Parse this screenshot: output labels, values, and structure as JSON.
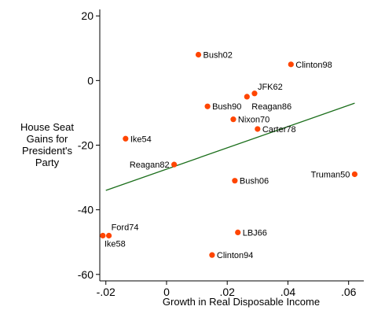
{
  "chart_data": {
    "type": "scatter",
    "title": "",
    "xlabel": "Growth in Real Disposable Income",
    "ylabel_lines": [
      "House Seat",
      "Gains for",
      "President's",
      "Party"
    ],
    "xlim": [
      -0.022,
      0.065
    ],
    "ylim": [
      -62,
      22
    ],
    "x_ticks": [
      -0.02,
      0,
      0.02,
      0.04,
      0.06
    ],
    "x_tick_labels": [
      "-.02",
      "0",
      ".02",
      ".04",
      ".06"
    ],
    "y_ticks": [
      -60,
      -40,
      -20,
      0,
      20
    ],
    "y_tick_labels": [
      "-60",
      "-40",
      "-20",
      "0",
      "20"
    ],
    "grid": false,
    "marker_color": "#ff4500",
    "fit_line_color": "#1a6e1a",
    "fit_line": {
      "x": [
        -0.02,
        0.062
      ],
      "y": [
        -34,
        -7
      ]
    },
    "points": [
      {
        "label": "Bush02",
        "x": 0.0105,
        "y": 8
      },
      {
        "label": "Clinton98",
        "x": 0.041,
        "y": 5
      },
      {
        "label": "JFK62",
        "x": 0.029,
        "y": -4
      },
      {
        "label": "Reagan86",
        "x": 0.0265,
        "y": -5
      },
      {
        "label": "Bush90",
        "x": 0.0135,
        "y": -8
      },
      {
        "label": "Nixon70",
        "x": 0.022,
        "y": -12
      },
      {
        "label": "Carter78",
        "x": 0.03,
        "y": -15
      },
      {
        "label": "Ike54",
        "x": -0.0135,
        "y": -18
      },
      {
        "label": "Reagan82",
        "x": 0.0025,
        "y": -26
      },
      {
        "label": "Bush06",
        "x": 0.0225,
        "y": -31
      },
      {
        "label": "Truman50",
        "x": 0.062,
        "y": -29
      },
      {
        "label": "Ford74",
        "x": -0.019,
        "y": -48
      },
      {
        "label": "Ike58",
        "x": -0.021,
        "y": -48
      },
      {
        "label": "LBJ66",
        "x": 0.0235,
        "y": -47
      },
      {
        "label": "Clinton94",
        "x": 0.015,
        "y": -54
      }
    ]
  }
}
